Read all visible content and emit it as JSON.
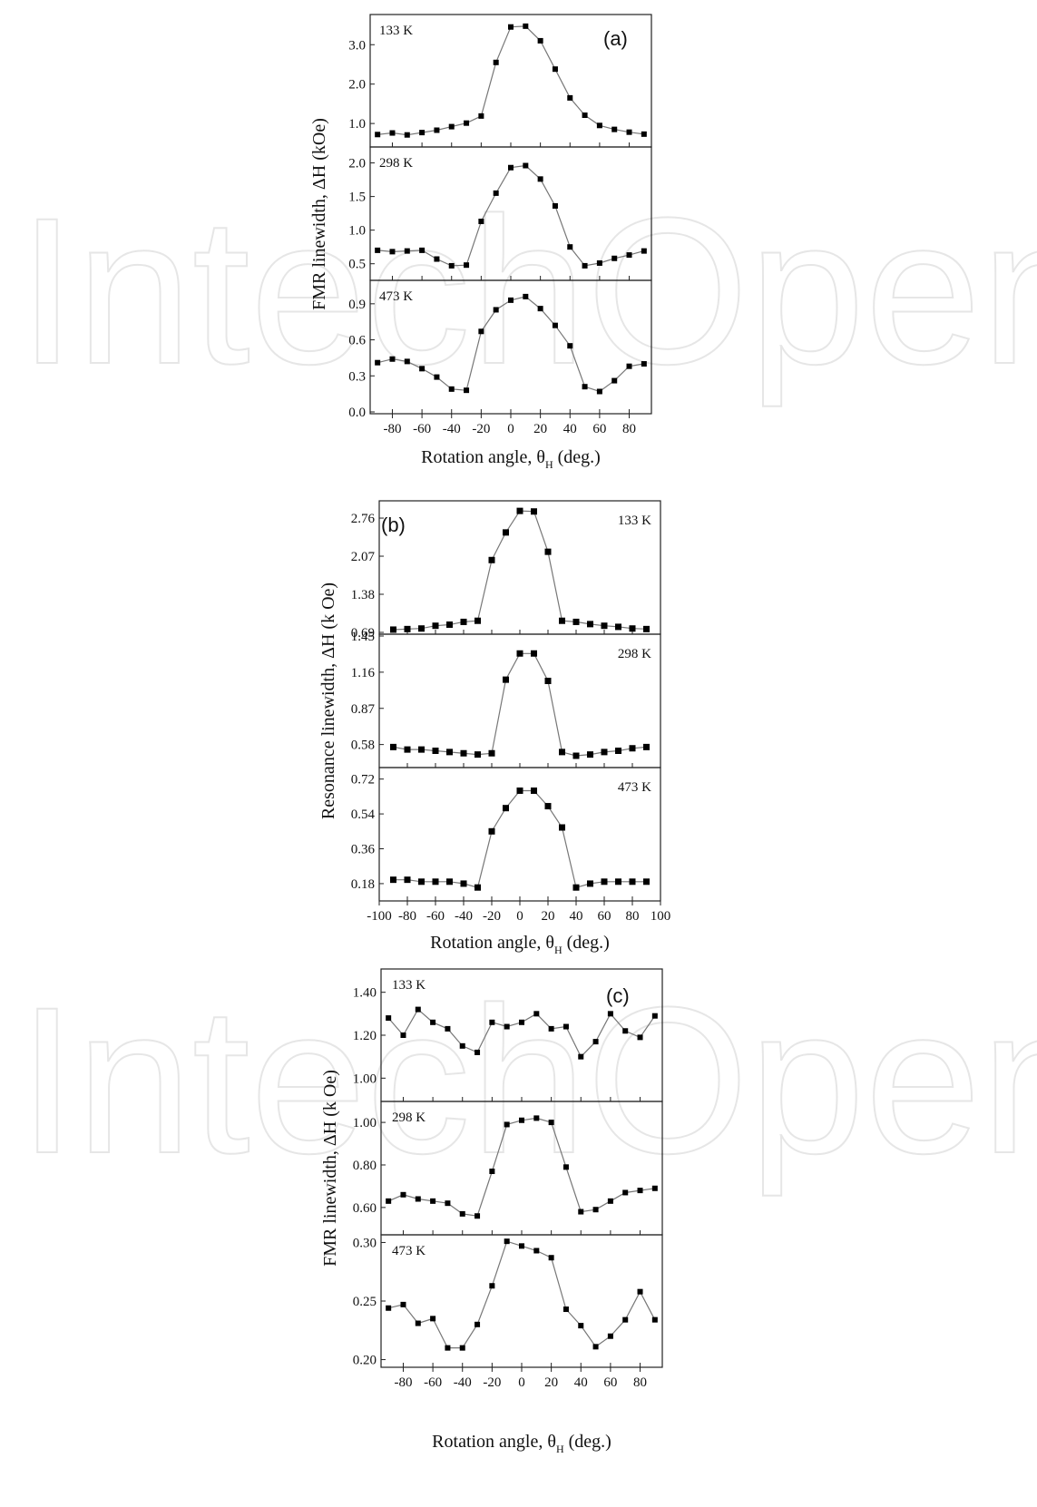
{
  "watermark": "IntechOpen",
  "chart_data": [
    {
      "type": "line",
      "panel_label": "(a)",
      "xlabel": "Rotation angle, θH (deg.)",
      "ylabel": "FMR linewidth, ΔH (kOe)",
      "xlim": [
        -95,
        95
      ],
      "xticks": [
        -80,
        -60,
        -40,
        -20,
        0,
        20,
        40,
        60,
        80
      ],
      "x": [
        -90,
        -80,
        -70,
        -60,
        -50,
        -40,
        -30,
        -20,
        -10,
        0,
        10,
        20,
        30,
        40,
        50,
        60,
        70,
        80,
        90
      ],
      "series": [
        {
          "name": "133 K",
          "ylim": [
            0.45,
            3.72
          ],
          "yticks": [
            {
              "v": 1.0,
              "label": "1.0"
            },
            {
              "v": 2.0,
              "label": "2.0"
            },
            {
              "v": 3.0,
              "label": "3.0"
            }
          ],
          "values": [
            0.72,
            0.76,
            0.71,
            0.77,
            0.83,
            0.92,
            1.01,
            1.19,
            2.55,
            3.45,
            3.47,
            3.1,
            2.38,
            1.65,
            1.21,
            0.95,
            0.85,
            0.78,
            0.73
          ]
        },
        {
          "name": "298 K",
          "ylim": [
            0.28,
            2.21
          ],
          "yticks": [
            {
              "v": 0.5,
              "label": "0.5"
            },
            {
              "v": 1.0,
              "label": "1.0"
            },
            {
              "v": 1.5,
              "label": "1.5"
            },
            {
              "v": 2.0,
              "label": "2.0"
            }
          ],
          "values": [
            0.7,
            0.68,
            0.69,
            0.7,
            0.57,
            0.47,
            0.48,
            1.13,
            1.55,
            1.93,
            1.96,
            1.76,
            1.36,
            0.75,
            0.47,
            0.51,
            0.58,
            0.63,
            0.69
          ]
        },
        {
          "name": "473 K",
          "ylim": [
            0.0,
            1.08
          ],
          "yticks": [
            {
              "v": 0.0,
              "label": "0.0"
            },
            {
              "v": 0.3,
              "label": "0.3"
            },
            {
              "v": 0.6,
              "label": "0.6"
            },
            {
              "v": 0.9,
              "label": "0.9"
            }
          ],
          "values": [
            0.41,
            0.44,
            0.42,
            0.36,
            0.29,
            0.19,
            0.18,
            0.67,
            0.85,
            0.93,
            0.96,
            0.86,
            0.72,
            0.55,
            0.21,
            0.17,
            0.26,
            0.38,
            0.4
          ]
        }
      ]
    },
    {
      "type": "line",
      "panel_label": "(b)",
      "xlabel": "Rotation angle, θH (deg.)",
      "ylabel": "Resonance linewidth, ΔH (k Oe)",
      "xlim": [
        -100,
        100
      ],
      "xticks": [
        -100,
        -80,
        -60,
        -40,
        -20,
        0,
        20,
        40,
        60,
        80,
        100
      ],
      "x": [
        -90,
        -80,
        -70,
        -60,
        -50,
        -40,
        -30,
        -20,
        -10,
        0,
        10,
        20,
        30,
        40,
        50,
        60,
        70,
        80,
        90
      ],
      "series": [
        {
          "name": "133 K",
          "ylim": [
            0.69,
            3.04
          ],
          "yticks": [
            {
              "v": 0.69,
              "label": "0.69"
            },
            {
              "v": 1.38,
              "label": "1.38"
            },
            {
              "v": 2.07,
              "label": "2.07"
            },
            {
              "v": 2.76,
              "label": "2.76"
            }
          ],
          "values": [
            0.74,
            0.75,
            0.76,
            0.81,
            0.83,
            0.88,
            0.9,
            2.0,
            2.5,
            2.89,
            2.88,
            2.15,
            0.9,
            0.88,
            0.84,
            0.81,
            0.79,
            0.76,
            0.75
          ]
        },
        {
          "name": "298 K",
          "ylim": [
            0.41,
            1.45
          ],
          "yticks": [
            {
              "v": 0.58,
              "label": "0.58"
            },
            {
              "v": 0.87,
              "label": "0.87"
            },
            {
              "v": 1.16,
              "label": "1.16"
            },
            {
              "v": 1.45,
              "label": "1.45"
            }
          ],
          "values": [
            0.56,
            0.54,
            0.54,
            0.53,
            0.52,
            0.51,
            0.5,
            0.51,
            1.1,
            1.31,
            1.31,
            1.09,
            0.52,
            0.49,
            0.5,
            0.52,
            0.53,
            0.55,
            0.56
          ]
        },
        {
          "name": "473 K",
          "ylim": [
            0.1,
            0.77
          ],
          "yticks": [
            {
              "v": 0.18,
              "label": "0.18"
            },
            {
              "v": 0.36,
              "label": "0.36"
            },
            {
              "v": 0.54,
              "label": "0.54"
            },
            {
              "v": 0.72,
              "label": "0.72"
            }
          ],
          "values": [
            0.2,
            0.2,
            0.19,
            0.19,
            0.19,
            0.18,
            0.16,
            0.45,
            0.57,
            0.66,
            0.66,
            0.58,
            0.47,
            0.16,
            0.18,
            0.19,
            0.19,
            0.19,
            0.19
          ]
        }
      ]
    },
    {
      "type": "line",
      "panel_label": "(c)",
      "xlabel": "Rotation angle, θH (deg.)",
      "ylabel": "FMR linewidth, ΔH (k Oe)",
      "xlim": [
        -95,
        95
      ],
      "xticks": [
        -80,
        -60,
        -40,
        -20,
        0,
        20,
        40,
        60,
        80
      ],
      "x": [
        -90,
        -80,
        -70,
        -60,
        -50,
        -40,
        -30,
        -20,
        -10,
        0,
        10,
        20,
        30,
        40,
        50,
        60,
        70,
        80,
        90
      ],
      "series": [
        {
          "name": "133 K",
          "ylim": [
            0.9,
            1.5
          ],
          "yticks": [
            {
              "v": 1.0,
              "label": "1.00"
            },
            {
              "v": 1.2,
              "label": "1.20"
            },
            {
              "v": 1.4,
              "label": "1.40"
            }
          ],
          "values": [
            1.28,
            1.2,
            1.32,
            1.26,
            1.23,
            1.15,
            1.12,
            1.26,
            1.24,
            1.26,
            1.3,
            1.23,
            1.24,
            1.1,
            1.17,
            1.3,
            1.22,
            1.19,
            1.29
          ]
        },
        {
          "name": "298 K",
          "ylim": [
            0.48,
            1.09
          ],
          "yticks": [
            {
              "v": 0.6,
              "label": "0.60"
            },
            {
              "v": 0.8,
              "label": "0.80"
            },
            {
              "v": 1.0,
              "label": "1.00"
            }
          ],
          "values": [
            0.63,
            0.66,
            0.64,
            0.63,
            0.62,
            0.57,
            0.56,
            0.77,
            0.99,
            1.01,
            1.02,
            1.0,
            0.79,
            0.58,
            0.59,
            0.63,
            0.67,
            0.68,
            0.69
          ]
        },
        {
          "name": "473 K",
          "ylim": [
            0.195,
            0.305
          ],
          "yticks": [
            {
              "v": 0.2,
              "label": "0.20"
            },
            {
              "v": 0.25,
              "label": "0.25"
            },
            {
              "v": 0.3,
              "label": "0.30"
            }
          ],
          "values": [
            0.244,
            0.247,
            0.231,
            0.235,
            0.21,
            0.21,
            0.23,
            0.263,
            0.301,
            0.297,
            0.293,
            0.287,
            0.243,
            0.229,
            0.211,
            0.22,
            0.234,
            0.258,
            0.234
          ]
        }
      ]
    }
  ]
}
